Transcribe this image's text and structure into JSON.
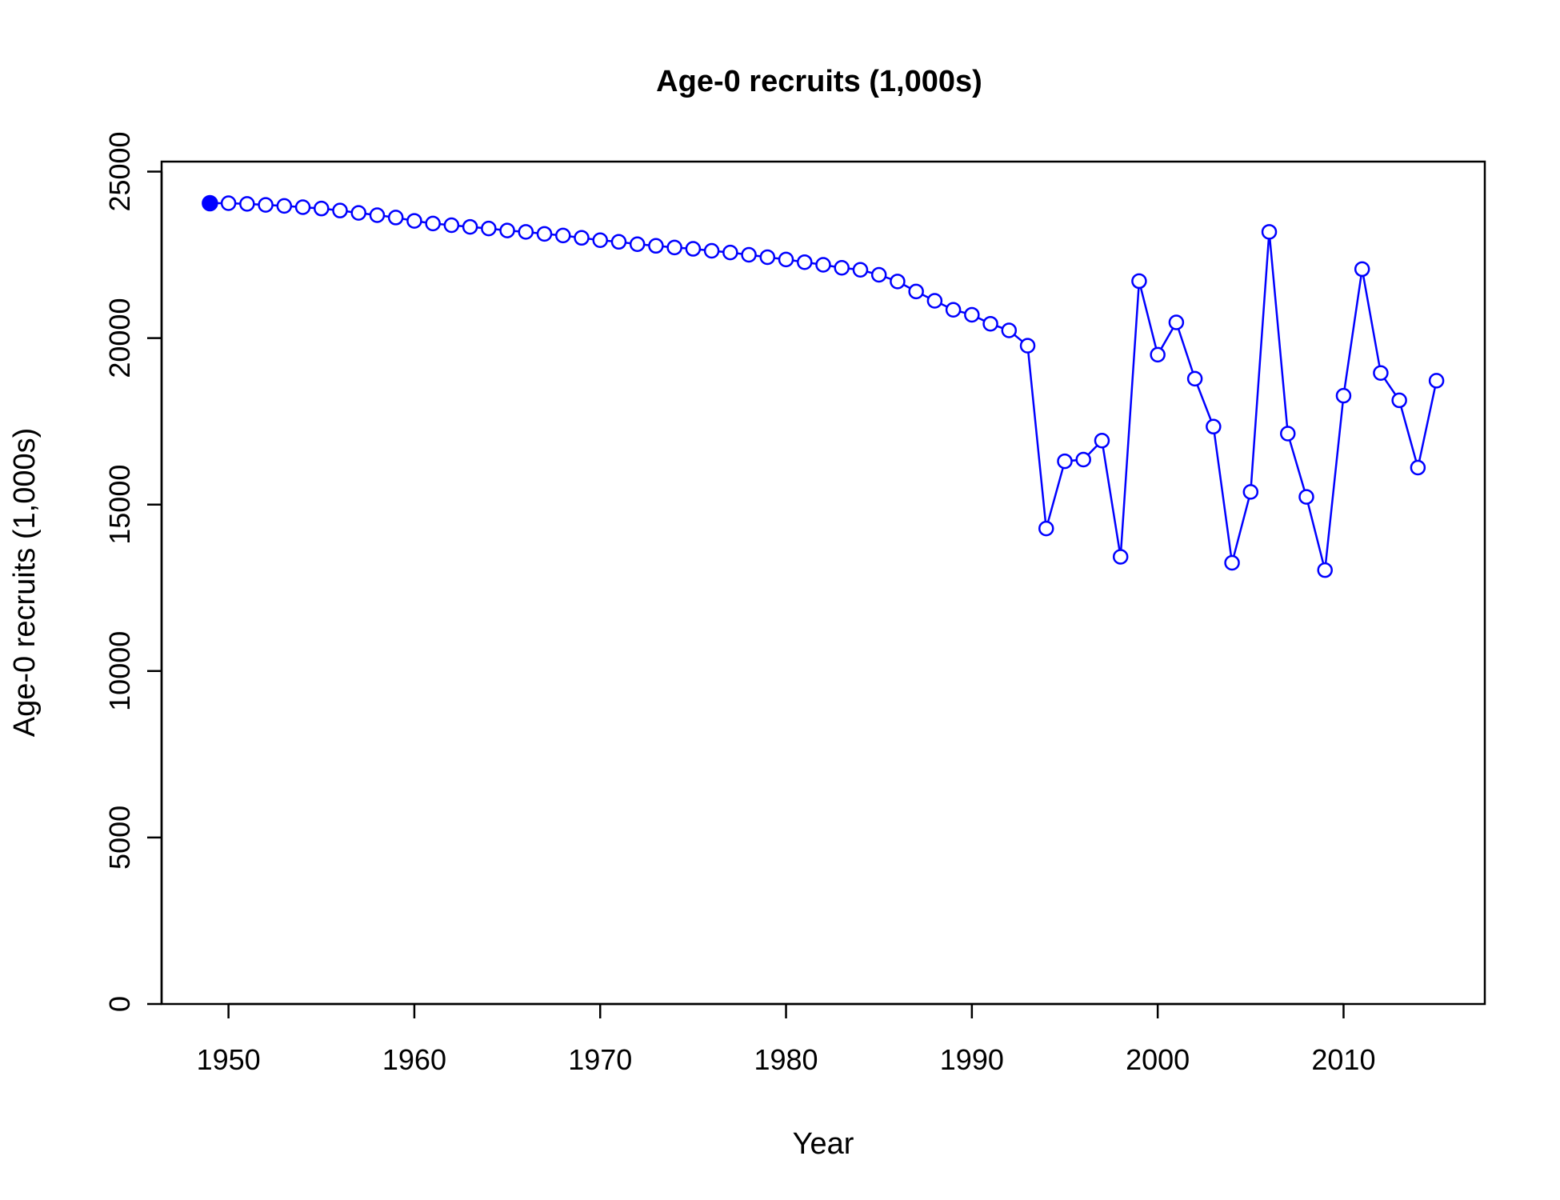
{
  "chart_data": {
    "type": "line",
    "title": "Age-0 recruits (1,000s)",
    "xlabel": "Year",
    "ylabel": "Age-0 recruits (1,000s)",
    "xlim": [
      1946.4,
      2017.6
    ],
    "ylim": [
      0,
      25300
    ],
    "xticks": [
      1950,
      1960,
      1970,
      1980,
      1990,
      2000,
      2010
    ],
    "yticks": [
      0,
      5000,
      10000,
      15000,
      20000,
      25000
    ],
    "grid": false,
    "legend": "none",
    "color": "#0000ff",
    "first_point_filled": true,
    "series": [
      {
        "x": [
          1949,
          1950,
          1951,
          1952,
          1953,
          1954,
          1955,
          1956,
          1957,
          1958,
          1959,
          1960,
          1961,
          1962,
          1963,
          1964,
          1965,
          1966,
          1967,
          1968,
          1969,
          1970,
          1971,
          1972,
          1973,
          1974,
          1975,
          1976,
          1977,
          1978,
          1979,
          1980,
          1981,
          1982,
          1983,
          1984,
          1985,
          1986,
          1987,
          1988,
          1989,
          1990,
          1991,
          1992,
          1993,
          1994,
          1995,
          1996,
          1997,
          1998,
          1999,
          2000,
          2001,
          2002,
          2003,
          2004,
          2005,
          2006,
          2007,
          2008,
          2009,
          2010,
          2011,
          2012,
          2013,
          2014,
          2015
        ],
        "values": [
          24050,
          24050,
          24030,
          24000,
          23970,
          23930,
          23890,
          23830,
          23760,
          23690,
          23620,
          23520,
          23440,
          23390,
          23340,
          23290,
          23230,
          23190,
          23130,
          23080,
          23010,
          22940,
          22890,
          22820,
          22770,
          22720,
          22680,
          22620,
          22570,
          22500,
          22430,
          22360,
          22280,
          22200,
          22110,
          22050,
          21900,
          21700,
          21400,
          21120,
          20850,
          20700,
          20430,
          20230,
          19770,
          14280,
          16300,
          16350,
          16920,
          13430,
          21710,
          19500,
          20470,
          18780,
          17340,
          13250,
          15380,
          23190,
          17130,
          15230,
          13030,
          18270,
          22070,
          18950,
          18130,
          16110,
          18720
        ]
      }
    ]
  }
}
